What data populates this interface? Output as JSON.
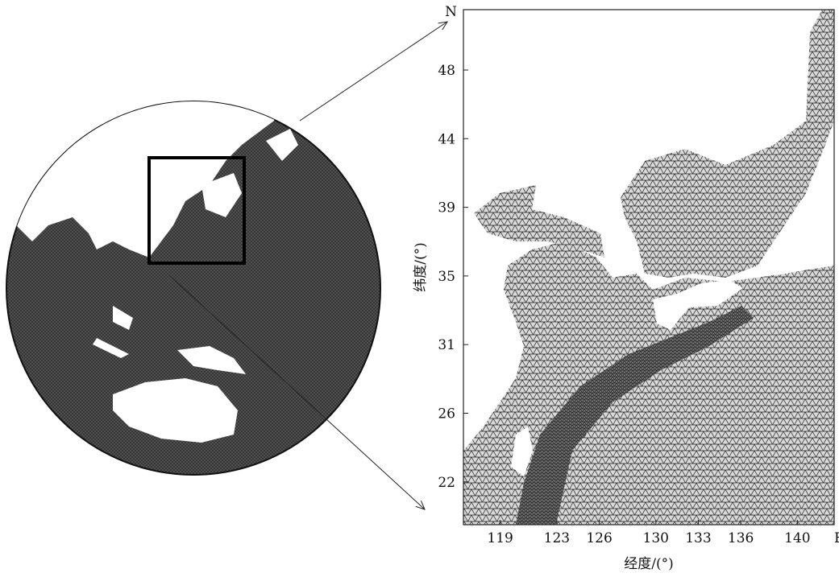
{
  "map": {
    "x_ticks": [
      119,
      123,
      126,
      130,
      133,
      136,
      140
    ],
    "x_end_label": "E",
    "y_ticks": [
      48,
      44,
      39,
      35,
      31,
      26,
      22
    ],
    "y_end_label": "N",
    "x_axis_label": "经度/(°)",
    "y_axis_label": "纬度/(°)",
    "xlim": [
      116.4,
      142.6
    ]
  }
}
